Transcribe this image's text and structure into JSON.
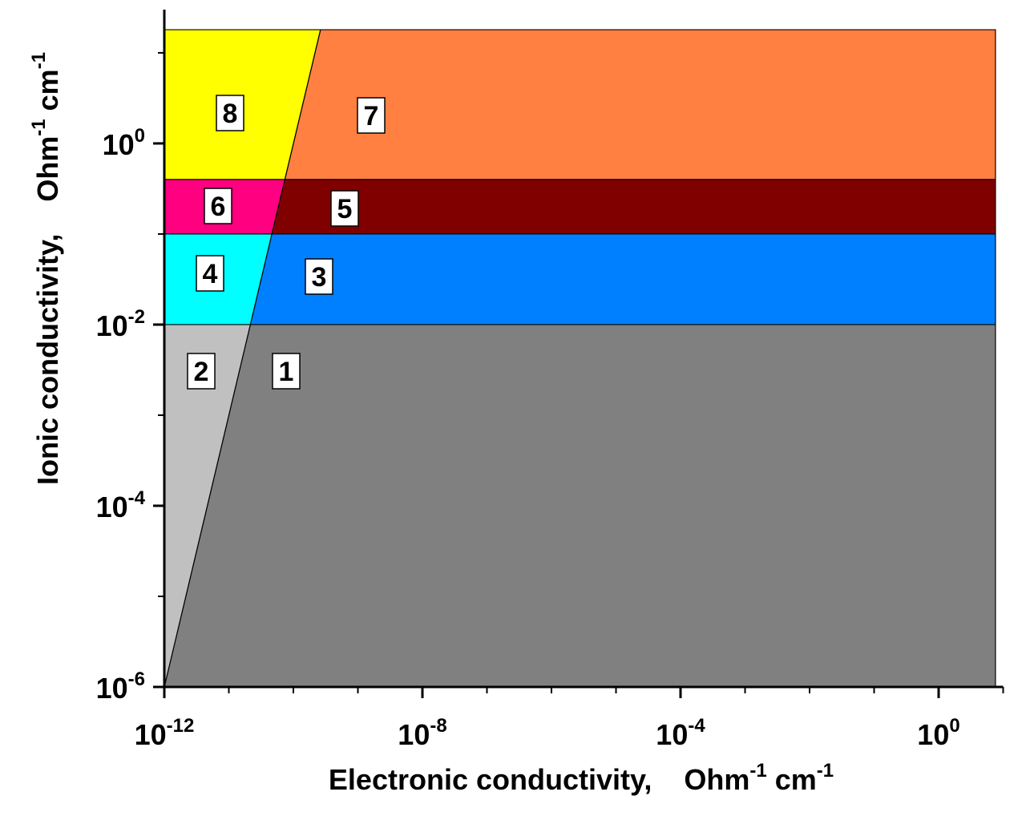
{
  "chart_data": {
    "type": "region",
    "xlabel": [
      "Electronic conductivity,    Ohm",
      "-1",
      " cm",
      "-1"
    ],
    "ylabel": [
      "Ionic conductivity,    Ohm",
      "-1",
      " cm",
      "-1"
    ],
    "log_x": true,
    "log_y": true,
    "xlim": [
      1e-12,
      10
    ],
    "ylim": [
      1e-06,
      30
    ],
    "xticks": [
      {
        "value": 1e-12,
        "label": "10",
        "sup": "-12"
      },
      {
        "value": 1e-08,
        "label": "10",
        "sup": "-8"
      },
      {
        "value": 0.0001,
        "label": "10",
        "sup": "-4"
      },
      {
        "value": 1,
        "label": "10",
        "sup": "0"
      }
    ],
    "xminor": [
      1e-11,
      1e-10,
      1e-09,
      1e-07,
      1e-06,
      1e-05,
      0.001,
      0.01,
      0.1,
      10
    ],
    "yticks": [
      {
        "value": 1e-06,
        "label": "10",
        "sup": "-6"
      },
      {
        "value": 0.0001,
        "label": "10",
        "sup": "-4"
      },
      {
        "value": 0.01,
        "label": "10",
        "sup": "-2"
      },
      {
        "value": 1,
        "label": "10",
        "sup": "0"
      }
    ],
    "yminor": [
      1e-05,
      0.001,
      0.1,
      10
    ],
    "regions": [
      {
        "label": "1",
        "color": "#808080",
        "x": [
          1e-12,
          2.154e-11,
          7.6,
          7.6
        ],
        "y": [
          1e-06,
          0.01,
          0.01,
          1e-06
        ]
      },
      {
        "label": "2",
        "color": "#c0c0c0",
        "x": [
          1e-12,
          1e-12,
          2.154e-11
        ],
        "y": [
          1e-06,
          0.01,
          0.01
        ]
      },
      {
        "label": "3",
        "color": "#0080ff",
        "x": [
          2.154e-11,
          7.6,
          7.6,
          4.642e-11
        ],
        "y": [
          0.01,
          0.01,
          0.1,
          0.1
        ]
      },
      {
        "label": "4",
        "color": "#00ffff",
        "x": [
          1e-12,
          2.154e-11,
          4.642e-11,
          1e-12
        ],
        "y": [
          0.01,
          0.01,
          0.1,
          0.1
        ]
      },
      {
        "label": "5",
        "color": "#800000",
        "x": [
          4.642e-11,
          7.6,
          7.6,
          7.37e-11
        ],
        "y": [
          0.1,
          0.1,
          0.4,
          0.4
        ]
      },
      {
        "label": "6",
        "color": "#ff0080",
        "x": [
          1e-12,
          4.642e-11,
          7.37e-11,
          1e-12
        ],
        "y": [
          0.1,
          0.1,
          0.4,
          0.4
        ]
      },
      {
        "label": "7",
        "color": "#ff8040",
        "x": [
          7.37e-11,
          7.6,
          7.6,
          2.63e-10
        ],
        "y": [
          0.4,
          0.4,
          18,
          18
        ]
      },
      {
        "label": "8",
        "color": "#ffff00",
        "x": [
          1e-12,
          7.37e-11,
          2.63e-10,
          1e-12
        ],
        "y": [
          0.4,
          0.4,
          18,
          18
        ]
      }
    ]
  }
}
